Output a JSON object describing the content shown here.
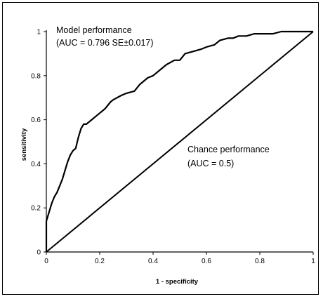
{
  "chart_data": {
    "type": "line",
    "title": "",
    "xlabel": "1 - specificity",
    "ylabel": "sensitivity",
    "xlim": [
      0,
      1
    ],
    "ylim": [
      0,
      1
    ],
    "x_ticks": [
      "0",
      "0.2",
      "0.4",
      "0.6",
      "0.8",
      "1"
    ],
    "y_ticks": [
      "0",
      "0.2",
      "0.4",
      "0.6",
      "0.8",
      "1"
    ],
    "grid": false,
    "legend": "none",
    "series": [
      {
        "name": "Model performance",
        "x": [
          0,
          0,
          0.005,
          0.01,
          0.015,
          0.02,
          0.03,
          0.04,
          0.05,
          0.06,
          0.07,
          0.08,
          0.09,
          0.1,
          0.11,
          0.12,
          0.13,
          0.14,
          0.15,
          0.17,
          0.19,
          0.2,
          0.22,
          0.24,
          0.25,
          0.28,
          0.3,
          0.33,
          0.35,
          0.38,
          0.4,
          0.43,
          0.45,
          0.48,
          0.5,
          0.52,
          0.55,
          0.58,
          0.6,
          0.63,
          0.65,
          0.68,
          0.7,
          0.72,
          0.75,
          0.78,
          0.8,
          0.83,
          0.85,
          0.88,
          0.9,
          0.92,
          0.95,
          0.97,
          1
        ],
        "y": [
          0,
          0.14,
          0.16,
          0.18,
          0.2,
          0.22,
          0.25,
          0.27,
          0.3,
          0.33,
          0.37,
          0.41,
          0.44,
          0.46,
          0.47,
          0.52,
          0.56,
          0.58,
          0.58,
          0.6,
          0.62,
          0.63,
          0.65,
          0.68,
          0.69,
          0.71,
          0.72,
          0.73,
          0.76,
          0.79,
          0.8,
          0.83,
          0.85,
          0.87,
          0.87,
          0.9,
          0.91,
          0.92,
          0.93,
          0.94,
          0.96,
          0.97,
          0.97,
          0.98,
          0.98,
          0.99,
          0.99,
          0.99,
          0.99,
          1,
          1,
          1,
          1,
          1,
          1
        ]
      },
      {
        "name": "Chance performance",
        "x": [
          0,
          1
        ],
        "y": [
          0,
          1
        ]
      }
    ],
    "annotations": [
      {
        "line1": "Model performance",
        "line2": "(AUC = 0.796 SE±0.017)"
      },
      {
        "line1": "Chance performance",
        "line2": "(AUC = 0.5)"
      }
    ]
  }
}
